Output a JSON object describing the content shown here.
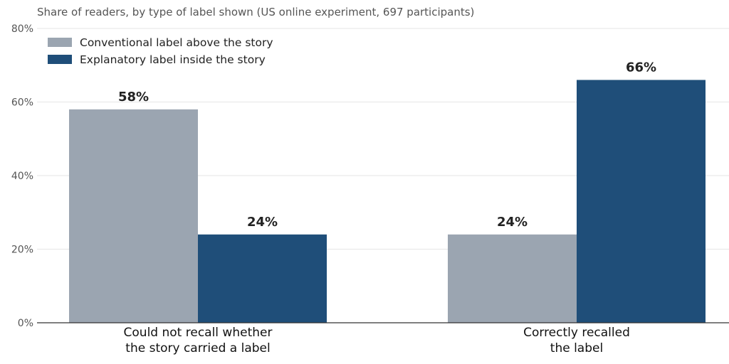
{
  "chart_data": {
    "type": "bar",
    "subtitle": "Share of readers, by type of label shown (US online experiment, 697 participants)",
    "categories": [
      [
        "Could not recall whether",
        "the story carried a label"
      ],
      [
        "Correctly recalled",
        "the label"
      ]
    ],
    "series": [
      {
        "name": "Conventional label above the story",
        "values": [
          58,
          24
        ],
        "color": "#9ba5b1"
      },
      {
        "name": "Explanatory label inside the story",
        "values": [
          24,
          66
        ],
        "color": "#1f4e79"
      }
    ],
    "value_labels": [
      [
        "58%",
        "24%"
      ],
      [
        "24%",
        "66%"
      ]
    ],
    "ylim": [
      0,
      80
    ],
    "yticks": [
      0,
      20,
      40,
      60,
      80
    ],
    "ytick_labels": [
      "0%",
      "20%",
      "40%",
      "60%",
      "80%"
    ],
    "grid": true,
    "legend_position": "top-left",
    "xlabel": "",
    "ylabel": ""
  }
}
